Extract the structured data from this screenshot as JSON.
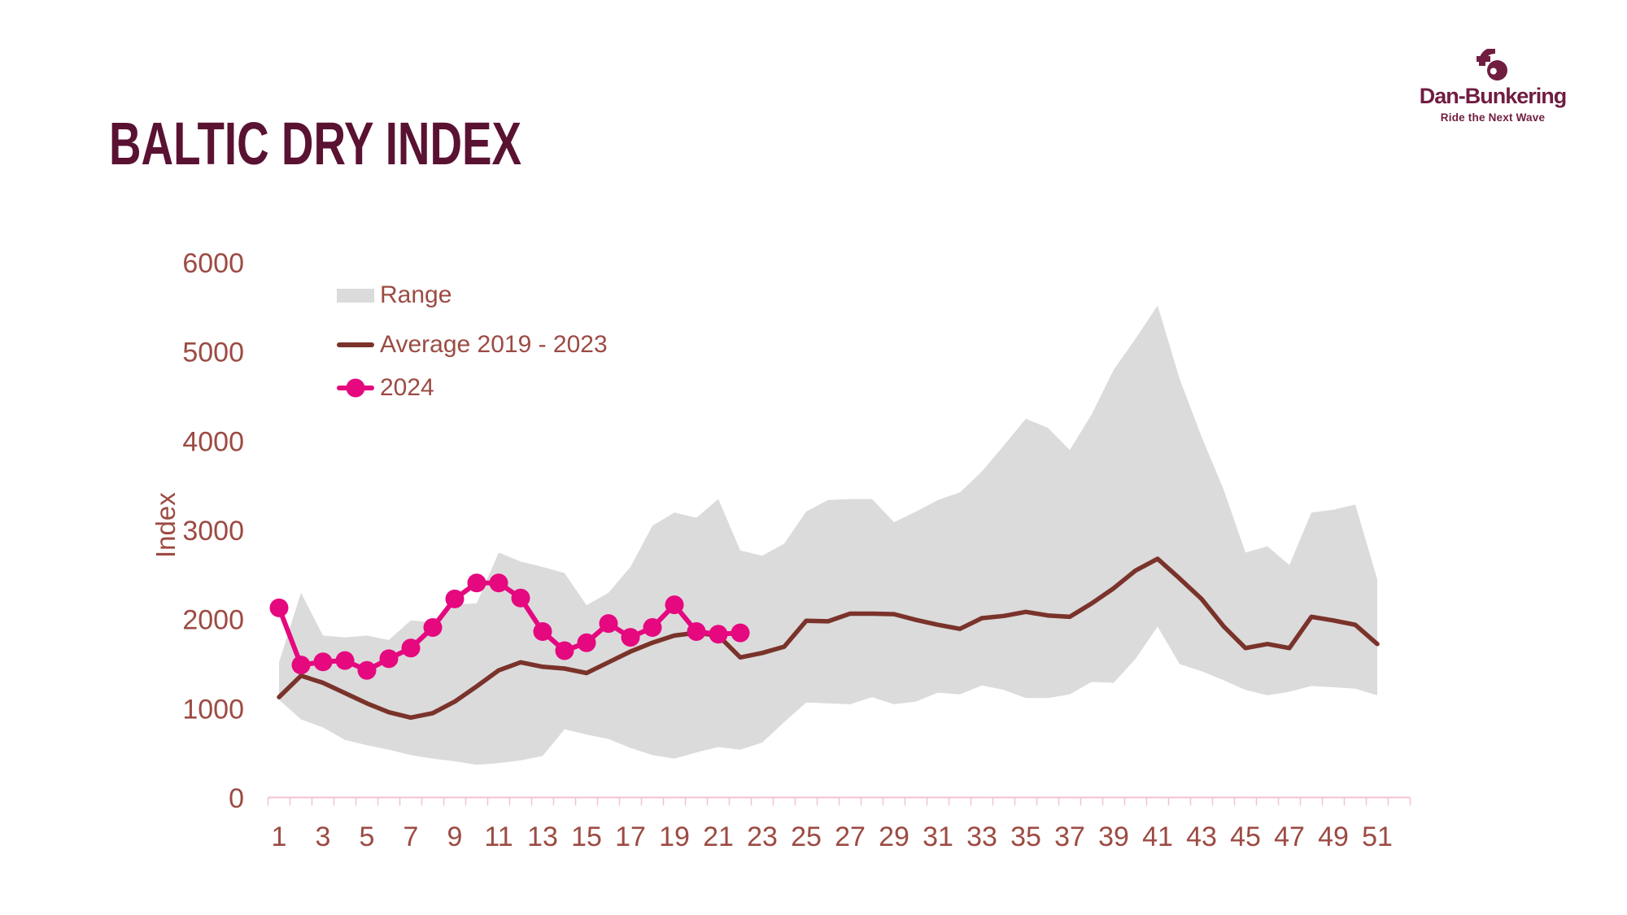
{
  "page": {
    "title": "BALTIC DRY INDEX"
  },
  "logo": {
    "name": "Dan-Bunkering",
    "tagline": "Ride the Next Wave"
  },
  "colors": {
    "background": "#FFFFFF",
    "title_text": "#5A1232",
    "logo_burgundy": "#701D41",
    "muted_text": "#9C4B43",
    "range_fill": "#DBDBDB",
    "average_line": "#7A332B",
    "line_2024": "#E5087F",
    "axis_line": "#F2C3CF"
  },
  "chart_data": {
    "type": "area+line",
    "title": "BALTIC DRY INDEX",
    "xlabel": "",
    "ylabel": "Index",
    "ylim": [
      0,
      6000
    ],
    "yticks": [
      0,
      1000,
      2000,
      3000,
      4000,
      5000,
      6000
    ],
    "x_tick_labels": [
      1,
      3,
      5,
      7,
      9,
      11,
      13,
      15,
      17,
      19,
      21,
      23,
      25,
      27,
      29,
      31,
      33,
      35,
      37,
      39,
      41,
      43,
      45,
      47,
      49,
      51
    ],
    "weeks": [
      1,
      2,
      3,
      4,
      5,
      6,
      7,
      8,
      9,
      10,
      11,
      12,
      13,
      14,
      15,
      16,
      17,
      18,
      19,
      20,
      21,
      22,
      23,
      24,
      25,
      26,
      27,
      28,
      29,
      30,
      31,
      32,
      33,
      34,
      35,
      36,
      37,
      38,
      39,
      40,
      41,
      42,
      43,
      44,
      45,
      46,
      47,
      48,
      49,
      50,
      51
    ],
    "grid": false,
    "legend_position": "top-left-inside",
    "legend": [
      {
        "label": "Range",
        "type": "area",
        "color": "#DBDBDB"
      },
      {
        "label": "Average 2019 - 2023",
        "type": "line",
        "color": "#7A332B"
      },
      {
        "label": "2024",
        "type": "line-marker",
        "color": "#E5087F"
      }
    ],
    "series": [
      {
        "name": "Range upper bound",
        "role": "range_upper",
        "values": [
          1520,
          2300,
          1820,
          1800,
          1820,
          1770,
          1990,
          1970,
          2170,
          2180,
          2750,
          2650,
          2590,
          2520,
          2160,
          2300,
          2590,
          3050,
          3200,
          3140,
          3350,
          2775,
          2715,
          2850,
          3210,
          3340,
          3350,
          3350,
          3090,
          3210,
          3340,
          3425,
          3660,
          3950,
          4250,
          4150,
          3900,
          4300,
          4800,
          5150,
          5520,
          4700,
          4050,
          3460,
          2750,
          2820,
          2610,
          3200,
          3230,
          3290,
          2450
        ]
      },
      {
        "name": "Range lower bound",
        "role": "range_lower",
        "values": [
          1100,
          880,
          790,
          650,
          590,
          540,
          480,
          440,
          410,
          370,
          390,
          420,
          470,
          770,
          710,
          660,
          560,
          480,
          440,
          510,
          570,
          540,
          620,
          850,
          1070,
          1060,
          1050,
          1130,
          1050,
          1080,
          1180,
          1160,
          1260,
          1210,
          1120,
          1120,
          1160,
          1300,
          1290,
          1560,
          1920,
          1500,
          1420,
          1320,
          1210,
          1150,
          1190,
          1255,
          1240,
          1225,
          1150
        ]
      },
      {
        "name": "Average 2019 - 2023",
        "role": "average",
        "values": [
          1130,
          1370,
          1290,
          1175,
          1060,
          960,
          900,
          950,
          1080,
          1250,
          1430,
          1520,
          1470,
          1450,
          1400,
          1520,
          1640,
          1740,
          1820,
          1850,
          1820,
          1575,
          1625,
          1695,
          1985,
          1980,
          2065,
          2065,
          2060,
          1995,
          1940,
          1895,
          2015,
          2040,
          2085,
          2045,
          2030,
          2180,
          2350,
          2550,
          2680,
          2460,
          2230,
          1925,
          1680,
          1725,
          1680,
          2030,
          1990,
          1940,
          1725
        ]
      },
      {
        "name": "2024",
        "role": "y2024",
        "values": [
          2130,
          1490,
          1525,
          1540,
          1430,
          1560,
          1680,
          1910,
          2230,
          2410,
          2410,
          2240,
          1865,
          1650,
          1740,
          1955,
          1800,
          1910,
          2165,
          1865,
          1835,
          1850
        ]
      }
    ]
  }
}
